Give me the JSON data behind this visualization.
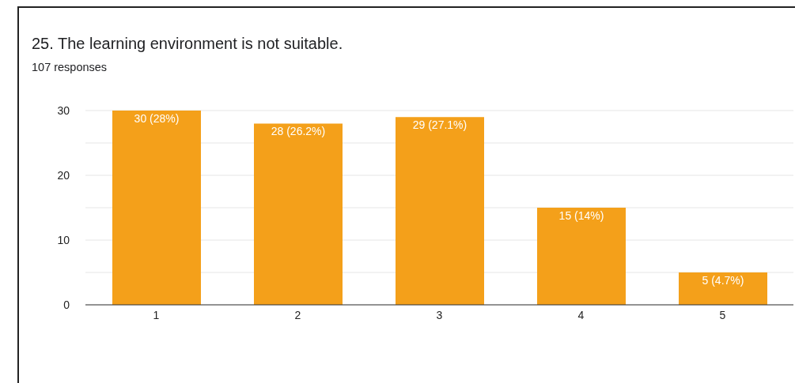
{
  "chart_data": {
    "type": "bar",
    "title": "25. The learning environment is not suitable.",
    "subtitle": "107 responses",
    "categories": [
      "1",
      "2",
      "3",
      "4",
      "5"
    ],
    "values": [
      30,
      28,
      29,
      15,
      5
    ],
    "value_labels": [
      "30 (28%)",
      "28 (26.2%)",
      "29 (27.1%)",
      "15 (14%)",
      "5 (4.7%)"
    ],
    "color": "#f4a01a",
    "ylim": [
      0,
      30
    ],
    "yticks": [
      0,
      {
        "value": 5,
        "label": null
      },
      10,
      {
        "value": 15,
        "label": null
      },
      20,
      {
        "value": 25,
        "label": null
      },
      30
    ],
    "grid": "y",
    "legend": false
  }
}
